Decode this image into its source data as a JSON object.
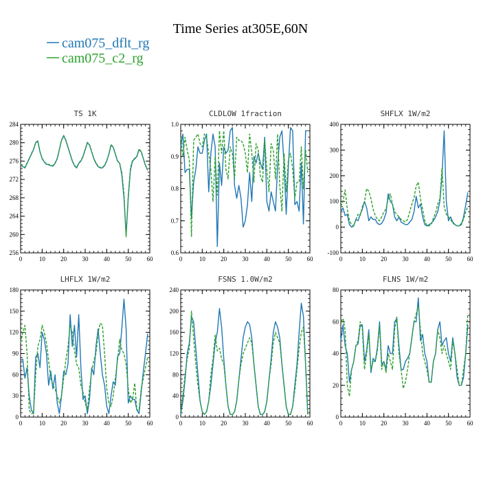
{
  "title": "Time Series at305E,60N",
  "legend": [
    {
      "name": "cam075_dflt_rg",
      "color": "#1f77b4",
      "dash": "solid"
    },
    {
      "name": "cam075_c2_rg",
      "color": "#2ca02c",
      "dash": "dashed"
    }
  ],
  "chart_data": [
    {
      "type": "line",
      "title": "TS   1K",
      "xlim": [
        0,
        60
      ],
      "xticks": [
        0,
        10,
        20,
        30,
        40,
        50,
        60
      ],
      "ylim": [
        256,
        284
      ],
      "yticks": [
        256,
        260,
        264,
        268,
        272,
        276,
        280,
        284
      ],
      "series": [
        {
          "name": "cam075_dflt_rg",
          "values": [
            275.2,
            274.8,
            274.5,
            275.5,
            276.5,
            277.5,
            278.5,
            280.0,
            280.3,
            278.0,
            276.5,
            275.8,
            275.3,
            275.2,
            275.0,
            274.9,
            275.5,
            276.5,
            278.5,
            280.5,
            281.5,
            280.5,
            279.0,
            277.5,
            276.0,
            275.0,
            274.5,
            275.5,
            276.0,
            277.0,
            278.5,
            280.0,
            279.5,
            278.0,
            276.5,
            275.5,
            274.8,
            274.5,
            274.5,
            275.0,
            276.0,
            277.5,
            279.5,
            279.0,
            277.5,
            276.0,
            275.5,
            273.0,
            268.0,
            260.0,
            268.0,
            274.0,
            276.0,
            276.5,
            277.0,
            278.5,
            278.0,
            276.5,
            275.0,
            274.0
          ]
        },
        {
          "name": "cam075_c2_rg",
          "values": [
            275.3,
            274.9,
            274.6,
            275.6,
            276.6,
            277.6,
            278.6,
            280.1,
            280.4,
            278.1,
            276.6,
            275.9,
            275.4,
            275.3,
            275.1,
            275.0,
            275.6,
            276.6,
            278.6,
            280.6,
            281.6,
            280.6,
            279.1,
            277.6,
            276.1,
            275.1,
            274.6,
            275.6,
            276.1,
            277.1,
            278.6,
            280.1,
            279.6,
            278.1,
            276.6,
            275.6,
            274.9,
            274.6,
            274.6,
            275.1,
            276.1,
            277.6,
            279.6,
            279.1,
            277.6,
            276.1,
            275.6,
            273.5,
            269.0,
            259.5,
            268.5,
            274.5,
            276.2,
            276.6,
            277.1,
            278.6,
            278.1,
            276.6,
            275.1,
            274.0
          ]
        }
      ]
    },
    {
      "type": "line",
      "title": "CLDLOW   1fraction",
      "xlim": [
        0,
        60
      ],
      "xticks": [
        0,
        10,
        20,
        30,
        40,
        50,
        60
      ],
      "ylim": [
        0.6,
        1.0
      ],
      "yticks": [
        0.6,
        0.7,
        0.8,
        0.9,
        1.0
      ],
      "series": [
        {
          "name": "cam075_dflt_rg",
          "values": [
            0.93,
            0.97,
            0.85,
            0.86,
            0.86,
            0.71,
            0.82,
            0.86,
            0.93,
            0.91,
            0.91,
            0.95,
            0.97,
            0.79,
            0.91,
            0.97,
            0.93,
            0.62,
            0.88,
            0.81,
            0.93,
            0.91,
            0.92,
            0.98,
            0.99,
            0.81,
            0.77,
            0.81,
            0.77,
            0.68,
            0.7,
            0.75,
            0.85,
            0.76,
            0.9,
            0.88,
            0.91,
            0.88,
            0.86,
            0.96,
            0.76,
            0.73,
            0.79,
            0.76,
            0.73,
            0.87,
            0.96,
            0.98,
            0.88,
            0.72,
            0.87,
            0.99,
            0.98,
            0.75,
            0.76,
            0.73,
            0.88,
            0.69,
            0.98,
            0.98
          ]
        },
        {
          "name": "cam075_c2_rg",
          "values": [
            0.96,
            0.9,
            0.96,
            0.92,
            0.89,
            0.65,
            0.95,
            0.96,
            0.97,
            0.94,
            0.93,
            0.97,
            0.96,
            0.91,
            0.86,
            0.76,
            0.9,
            0.78,
            0.98,
            0.91,
            0.98,
            0.86,
            0.83,
            0.93,
            0.91,
            0.83,
            0.96,
            0.95,
            0.95,
            0.94,
            0.91,
            0.85,
            0.97,
            0.91,
            0.82,
            0.94,
            0.92,
            0.84,
            0.82,
            0.95,
            0.86,
            0.79,
            0.94,
            0.92,
            0.83,
            0.97,
            0.81,
            0.73,
            0.91,
            0.79,
            0.89,
            0.91,
            0.86,
            0.77,
            0.82,
            0.82,
            0.93,
            0.8,
            0.92,
            0.85
          ]
        }
      ]
    },
    {
      "type": "line",
      "title": "SHFLX   1W/m2",
      "xlim": [
        0,
        60
      ],
      "xticks": [
        0,
        10,
        20,
        30,
        40,
        50,
        60
      ],
      "ylim": [
        -100,
        400
      ],
      "yticks": [
        -100,
        0,
        100,
        200,
        300,
        400
      ],
      "series": [
        {
          "name": "cam075_dflt_rg",
          "values": [
            60,
            75,
            45,
            50,
            10,
            0,
            5,
            30,
            25,
            50,
            70,
            100,
            75,
            25,
            40,
            30,
            30,
            15,
            10,
            15,
            30,
            55,
            130,
            100,
            90,
            40,
            25,
            40,
            20,
            15,
            10,
            10,
            20,
            30,
            60,
            120,
            75,
            90,
            40,
            10,
            5,
            10,
            15,
            25,
            40,
            60,
            100,
            200,
            375,
            100,
            25,
            40,
            20,
            10,
            5,
            5,
            10,
            40,
            85,
            135
          ]
        },
        {
          "name": "cam075_c2_rg",
          "values": [
            80,
            100,
            145,
            70,
            25,
            10,
            5,
            30,
            50,
            45,
            80,
            100,
            150,
            140,
            110,
            70,
            45,
            30,
            25,
            40,
            60,
            70,
            110,
            130,
            90,
            60,
            50,
            40,
            30,
            25,
            20,
            30,
            60,
            90,
            115,
            160,
            175,
            110,
            70,
            25,
            5,
            5,
            10,
            35,
            55,
            90,
            110,
            230,
            80,
            50,
            40,
            30,
            15,
            10,
            5,
            5,
            15,
            30,
            60,
            80
          ]
        }
      ]
    },
    {
      "type": "line",
      "title": "LHFLX   1W/m2",
      "xlim": [
        0,
        60
      ],
      "xticks": [
        0,
        10,
        20,
        30,
        40,
        50,
        60
      ],
      "ylim": [
        0,
        180
      ],
      "yticks": [
        0,
        30,
        60,
        90,
        120,
        150,
        180
      ],
      "series": [
        {
          "name": "cam075_dflt_rg",
          "values": [
            80,
            82,
            55,
            70,
            30,
            10,
            5,
            85,
            90,
            70,
            120,
            110,
            90,
            45,
            65,
            40,
            60,
            20,
            5,
            30,
            65,
            60,
            75,
            145,
            100,
            130,
            85,
            145,
            70,
            25,
            30,
            5,
            25,
            70,
            60,
            100,
            125,
            90,
            60,
            45,
            15,
            5,
            30,
            50,
            45,
            85,
            90,
            125,
            167,
            125,
            20,
            30,
            25,
            25,
            10,
            5,
            35,
            65,
            90,
            118
          ]
        },
        {
          "name": "cam075_c2_rg",
          "values": [
            105,
            120,
            130,
            90,
            10,
            5,
            5,
            60,
            100,
            110,
            130,
            120,
            105,
            80,
            55,
            45,
            40,
            30,
            20,
            30,
            55,
            80,
            100,
            130,
            120,
            95,
            75,
            70,
            45,
            35,
            20,
            10,
            40,
            65,
            80,
            90,
            120,
            133,
            130,
            90,
            40,
            20,
            15,
            30,
            55,
            80,
            110,
            95,
            90,
            75,
            40,
            20,
            25,
            48,
            10,
            10,
            40,
            55,
            70,
            85
          ]
        }
      ]
    },
    {
      "type": "line",
      "title": "FSNS   1.0W/m2",
      "xlim": [
        0,
        60
      ],
      "xticks": [
        0,
        10,
        20,
        30,
        40,
        50,
        60
      ],
      "ylim": [
        0,
        240
      ],
      "yticks": [
        0,
        40,
        80,
        120,
        160,
        200,
        240
      ],
      "series": [
        {
          "name": "cam075_dflt_rg",
          "values": [
            5,
            30,
            70,
            120,
            140,
            190,
            180,
            130,
            80,
            30,
            10,
            5,
            10,
            30,
            60,
            100,
            140,
            160,
            205,
            170,
            110,
            60,
            20,
            5,
            5,
            10,
            30,
            70,
            110,
            150,
            170,
            180,
            175,
            150,
            100,
            60,
            20,
            5,
            5,
            10,
            30,
            70,
            110,
            160,
            180,
            170,
            150,
            100,
            60,
            20,
            5,
            5,
            20,
            60,
            100,
            160,
            215,
            190,
            100,
            5
          ]
        },
        {
          "name": "cam075_c2_rg",
          "values": [
            10,
            40,
            80,
            110,
            130,
            200,
            150,
            100,
            60,
            30,
            10,
            5,
            10,
            30,
            80,
            110,
            155,
            125,
            130,
            110,
            100,
            60,
            20,
            5,
            5,
            10,
            30,
            70,
            100,
            120,
            130,
            140,
            150,
            140,
            100,
            60,
            20,
            5,
            5,
            10,
            30,
            70,
            100,
            140,
            160,
            150,
            140,
            100,
            60,
            20,
            5,
            5,
            20,
            50,
            90,
            130,
            160,
            170,
            100,
            5
          ]
        }
      ]
    },
    {
      "type": "line",
      "title": "FLNS   1W/m2",
      "xlim": [
        0,
        60
      ],
      "xticks": [
        0,
        10,
        20,
        30,
        40,
        50,
        60
      ],
      "ylim": [
        0,
        80
      ],
      "yticks": [
        0,
        20,
        40,
        60,
        80
      ],
      "series": [
        {
          "name": "cam075_dflt_rg",
          "values": [
            48,
            58,
            45,
            40,
            22,
            30,
            35,
            45,
            46,
            58,
            58,
            35,
            42,
            55,
            28,
            37,
            35,
            44,
            60,
            33,
            35,
            30,
            45,
            40,
            40,
            60,
            62,
            45,
            30,
            30,
            35,
            37,
            40,
            50,
            60,
            60,
            75,
            48,
            52,
            40,
            35,
            22,
            22,
            35,
            40,
            55,
            60,
            45,
            48,
            50,
            40,
            35,
            50,
            40,
            25,
            20,
            20,
            25,
            40,
            58
          ]
        },
        {
          "name": "cam075_c2_rg",
          "values": [
            60,
            62,
            55,
            20,
            13,
            30,
            35,
            45,
            48,
            60,
            55,
            30,
            40,
            52,
            30,
            35,
            35,
            42,
            58,
            30,
            35,
            28,
            40,
            35,
            30,
            55,
            63,
            40,
            30,
            18,
            22,
            30,
            40,
            50,
            60,
            65,
            70,
            55,
            40,
            35,
            30,
            22,
            22,
            35,
            40,
            55,
            50,
            40,
            45,
            40,
            35,
            30,
            48,
            40,
            30,
            20,
            20,
            30,
            40,
            65
          ]
        }
      ]
    }
  ]
}
